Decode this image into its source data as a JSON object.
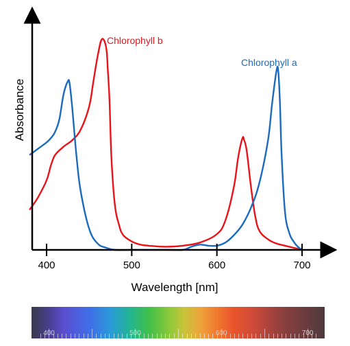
{
  "chart_data": {
    "type": "line",
    "xlabel": "Wavelength [nm]",
    "ylabel": "Absorbance",
    "xlim": [
      380,
      720
    ],
    "ylim": [
      0,
      1.05
    ],
    "xticks": [
      400,
      500,
      600,
      700
    ],
    "xtick_labels": [
      "400",
      "500",
      "600",
      "700"
    ],
    "grid": false,
    "series": [
      {
        "name": "Chlorophyll b",
        "color": "#e8141a",
        "x": [
          380,
          390,
          400,
          405,
          410,
          420,
          430,
          440,
          450,
          455,
          460,
          465,
          470,
          472,
          474,
          476,
          480,
          485,
          490,
          500,
          510,
          520,
          540,
          560,
          580,
          600,
          610,
          620,
          625,
          630,
          632,
          635,
          640,
          645,
          650,
          660,
          670,
          680,
          690,
          700
        ],
        "y": [
          0.19,
          0.25,
          0.33,
          0.4,
          0.45,
          0.49,
          0.52,
          0.57,
          0.68,
          0.8,
          0.92,
          1.0,
          0.96,
          0.85,
          0.7,
          0.45,
          0.22,
          0.12,
          0.07,
          0.04,
          0.025,
          0.02,
          0.015,
          0.02,
          0.035,
          0.075,
          0.14,
          0.3,
          0.44,
          0.53,
          0.52,
          0.47,
          0.3,
          0.16,
          0.09,
          0.05,
          0.03,
          0.02,
          0.01,
          0.0
        ]
      },
      {
        "name": "Chlorophyll a",
        "color": "#1a6bbf",
        "x": [
          380,
          390,
          400,
          405,
          410,
          415,
          420,
          425,
          427,
          430,
          435,
          440,
          450,
          460,
          470,
          480,
          500,
          520,
          540,
          560,
          570,
          580,
          590,
          600,
          610,
          620,
          630,
          640,
          650,
          660,
          665,
          670,
          672,
          674,
          676,
          680,
          685,
          690,
          695,
          700
        ],
        "y": [
          0.45,
          0.48,
          0.51,
          0.53,
          0.56,
          0.62,
          0.74,
          0.8,
          0.79,
          0.68,
          0.45,
          0.28,
          0.1,
          0.03,
          0.01,
          0.0,
          0.0,
          0.0,
          0.0,
          0.0,
          0.015,
          0.025,
          0.02,
          0.02,
          0.035,
          0.07,
          0.12,
          0.2,
          0.32,
          0.52,
          0.7,
          0.85,
          0.85,
          0.7,
          0.45,
          0.18,
          0.08,
          0.04,
          0.015,
          0.0
        ]
      }
    ]
  },
  "spectrum": {
    "labels": [
      "400",
      "500",
      "600",
      "700"
    ],
    "label_values": [
      400,
      500,
      600,
      700
    ],
    "range": [
      380,
      720
    ]
  }
}
